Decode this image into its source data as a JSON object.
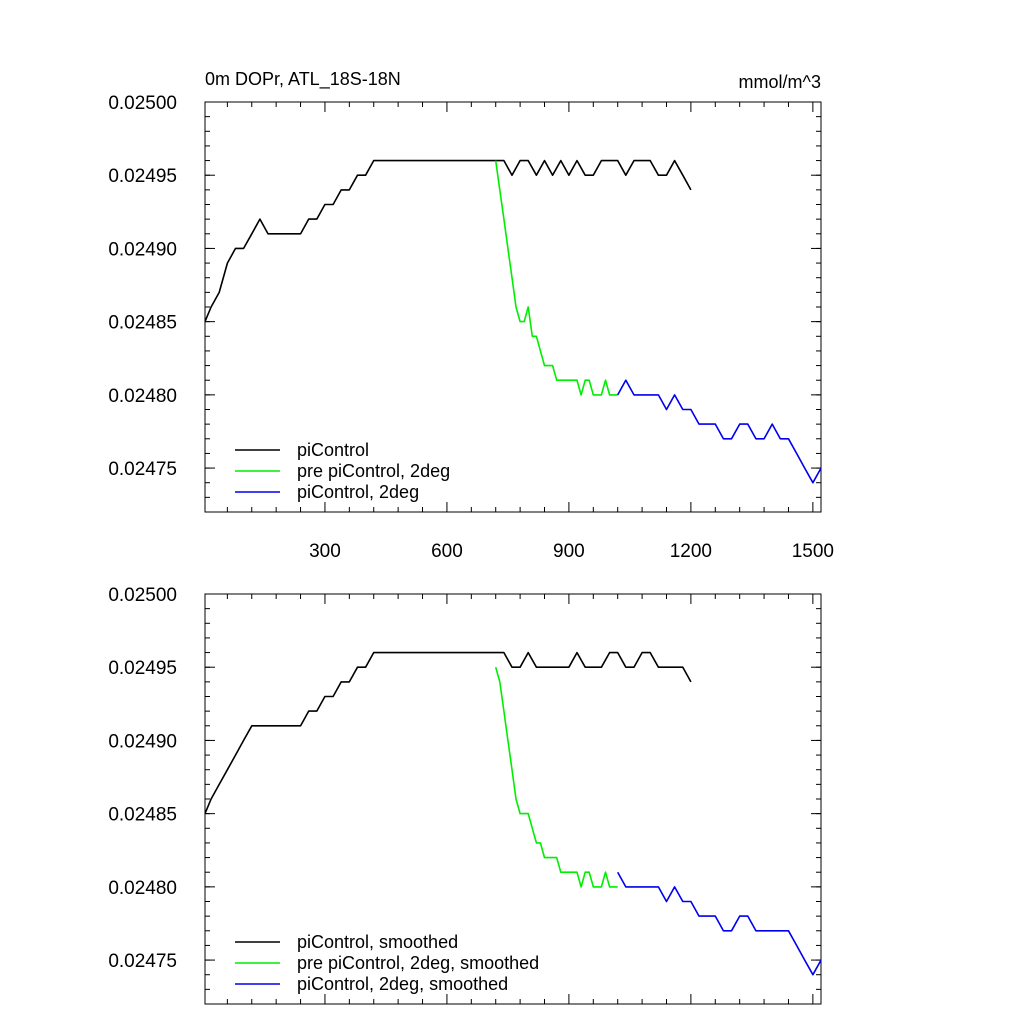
{
  "chart_data": [
    {
      "type": "line",
      "title": "0m DOPr, ATL_18S-18N",
      "units": "mmol/m^3",
      "xlim": [
        5,
        1520
      ],
      "ylim": [
        0.02472,
        0.025
      ],
      "x_ticks": [
        300,
        600,
        900,
        1200,
        1500
      ],
      "y_ticks": [
        "0.02500",
        "0.02495",
        "0.02490",
        "0.02485",
        "0.02480",
        "0.02475"
      ],
      "grid": false,
      "legend_position": "bottom-left",
      "series": [
        {
          "name": "piControl",
          "color": "#000000",
          "x": [
            5,
            20,
            40,
            60,
            80,
            100,
            120,
            140,
            160,
            180,
            200,
            220,
            240,
            260,
            280,
            300,
            320,
            340,
            360,
            380,
            400,
            420,
            440,
            460,
            480,
            500,
            520,
            540,
            560,
            580,
            600,
            620,
            640,
            660,
            680,
            700,
            720,
            740,
            760,
            780,
            800,
            820,
            840,
            860,
            880,
            900,
            920,
            940,
            960,
            980,
            1000,
            1020,
            1040,
            1060,
            1080,
            1100,
            1120,
            1140,
            1160,
            1180,
            1200
          ],
          "y": [
            0.02485,
            0.02486,
            0.02487,
            0.02489,
            0.0249,
            0.0249,
            0.02491,
            0.02492,
            0.02491,
            0.02491,
            0.02491,
            0.02491,
            0.02491,
            0.02492,
            0.02492,
            0.02493,
            0.02493,
            0.02494,
            0.02494,
            0.02495,
            0.02495,
            0.02496,
            0.02496,
            0.02496,
            0.02496,
            0.02496,
            0.02496,
            0.02496,
            0.02496,
            0.02496,
            0.02496,
            0.02496,
            0.02496,
            0.02496,
            0.02496,
            0.02496,
            0.02496,
            0.02496,
            0.02495,
            0.02496,
            0.02496,
            0.02495,
            0.02496,
            0.02495,
            0.02496,
            0.02495,
            0.02496,
            0.02495,
            0.02495,
            0.02496,
            0.02496,
            0.02496,
            0.02495,
            0.02496,
            0.02496,
            0.02496,
            0.02495,
            0.02495,
            0.02496,
            0.02495,
            0.02494
          ]
        },
        {
          "name": "pre piControl, 2deg",
          "color": "#00ee00",
          "x": [
            720,
            730,
            740,
            750,
            760,
            770,
            780,
            790,
            800,
            810,
            820,
            830,
            840,
            850,
            860,
            870,
            880,
            890,
            900,
            910,
            920,
            930,
            940,
            950,
            960,
            970,
            980,
            990,
            1000,
            1020
          ],
          "y": [
            0.02496,
            0.02494,
            0.02492,
            0.0249,
            0.02488,
            0.02486,
            0.02485,
            0.02485,
            0.02486,
            0.02484,
            0.02484,
            0.02483,
            0.02482,
            0.02482,
            0.02482,
            0.02481,
            0.02481,
            0.02481,
            0.02481,
            0.02481,
            0.02481,
            0.0248,
            0.02481,
            0.02481,
            0.0248,
            0.0248,
            0.0248,
            0.02481,
            0.0248,
            0.0248
          ]
        },
        {
          "name": "piControl, 2deg",
          "color": "#0000ee",
          "x": [
            1020,
            1040,
            1060,
            1080,
            1100,
            1120,
            1140,
            1160,
            1180,
            1200,
            1220,
            1240,
            1260,
            1280,
            1300,
            1320,
            1340,
            1360,
            1380,
            1400,
            1420,
            1440,
            1460,
            1480,
            1500,
            1520
          ],
          "y": [
            0.0248,
            0.02481,
            0.0248,
            0.0248,
            0.0248,
            0.0248,
            0.02479,
            0.0248,
            0.02479,
            0.02479,
            0.02478,
            0.02478,
            0.02478,
            0.02477,
            0.02477,
            0.02478,
            0.02478,
            0.02477,
            0.02477,
            0.02478,
            0.02477,
            0.02477,
            0.02476,
            0.02475,
            0.02474,
            0.02475
          ]
        }
      ]
    },
    {
      "type": "line",
      "xlim": [
        5,
        1520
      ],
      "ylim": [
        0.02472,
        0.025
      ],
      "x_ticks": [
        300,
        600,
        900,
        1200,
        1500
      ],
      "y_ticks": [
        "0.02500",
        "0.02495",
        "0.02490",
        "0.02485",
        "0.02480",
        "0.02475"
      ],
      "grid": false,
      "legend_position": "bottom-left",
      "series": [
        {
          "name": "piControl, smoothed",
          "color": "#000000",
          "x": [
            5,
            20,
            40,
            60,
            80,
            100,
            120,
            140,
            160,
            180,
            200,
            220,
            240,
            260,
            280,
            300,
            320,
            340,
            360,
            380,
            400,
            420,
            440,
            460,
            480,
            500,
            520,
            540,
            560,
            580,
            600,
            620,
            640,
            660,
            680,
            700,
            720,
            740,
            760,
            780,
            800,
            820,
            840,
            860,
            880,
            900,
            920,
            940,
            960,
            980,
            1000,
            1020,
            1040,
            1060,
            1080,
            1100,
            1120,
            1140,
            1160,
            1180,
            1200
          ],
          "y": [
            0.02485,
            0.02486,
            0.02487,
            0.02488,
            0.02489,
            0.0249,
            0.02491,
            0.02491,
            0.02491,
            0.02491,
            0.02491,
            0.02491,
            0.02491,
            0.02492,
            0.02492,
            0.02493,
            0.02493,
            0.02494,
            0.02494,
            0.02495,
            0.02495,
            0.02496,
            0.02496,
            0.02496,
            0.02496,
            0.02496,
            0.02496,
            0.02496,
            0.02496,
            0.02496,
            0.02496,
            0.02496,
            0.02496,
            0.02496,
            0.02496,
            0.02496,
            0.02496,
            0.02496,
            0.02495,
            0.02495,
            0.02496,
            0.02495,
            0.02495,
            0.02495,
            0.02495,
            0.02495,
            0.02496,
            0.02495,
            0.02495,
            0.02495,
            0.02496,
            0.02496,
            0.02495,
            0.02495,
            0.02496,
            0.02496,
            0.02495,
            0.02495,
            0.02495,
            0.02495,
            0.02494
          ]
        },
        {
          "name": "pre piControl, 2deg, smoothed",
          "color": "#00ee00",
          "x": [
            720,
            730,
            740,
            750,
            760,
            770,
            780,
            790,
            800,
            810,
            820,
            830,
            840,
            850,
            860,
            870,
            880,
            890,
            900,
            910,
            920,
            930,
            940,
            950,
            960,
            970,
            980,
            990,
            1000,
            1020
          ],
          "y": [
            0.02495,
            0.02494,
            0.02492,
            0.0249,
            0.02488,
            0.02486,
            0.02485,
            0.02485,
            0.02485,
            0.02484,
            0.02483,
            0.02483,
            0.02482,
            0.02482,
            0.02482,
            0.02482,
            0.02481,
            0.02481,
            0.02481,
            0.02481,
            0.02481,
            0.0248,
            0.02481,
            0.02481,
            0.0248,
            0.0248,
            0.0248,
            0.02481,
            0.0248,
            0.0248
          ]
        },
        {
          "name": "piControl, 2deg, smoothed",
          "color": "#0000ee",
          "x": [
            1020,
            1040,
            1060,
            1080,
            1100,
            1120,
            1140,
            1160,
            1180,
            1200,
            1220,
            1240,
            1260,
            1280,
            1300,
            1320,
            1340,
            1360,
            1380,
            1400,
            1420,
            1440,
            1460,
            1480,
            1500,
            1520
          ],
          "y": [
            0.02481,
            0.0248,
            0.0248,
            0.0248,
            0.0248,
            0.0248,
            0.02479,
            0.0248,
            0.02479,
            0.02479,
            0.02478,
            0.02478,
            0.02478,
            0.02477,
            0.02477,
            0.02478,
            0.02478,
            0.02477,
            0.02477,
            0.02477,
            0.02477,
            0.02477,
            0.02476,
            0.02475,
            0.02474,
            0.02475
          ]
        }
      ]
    }
  ]
}
